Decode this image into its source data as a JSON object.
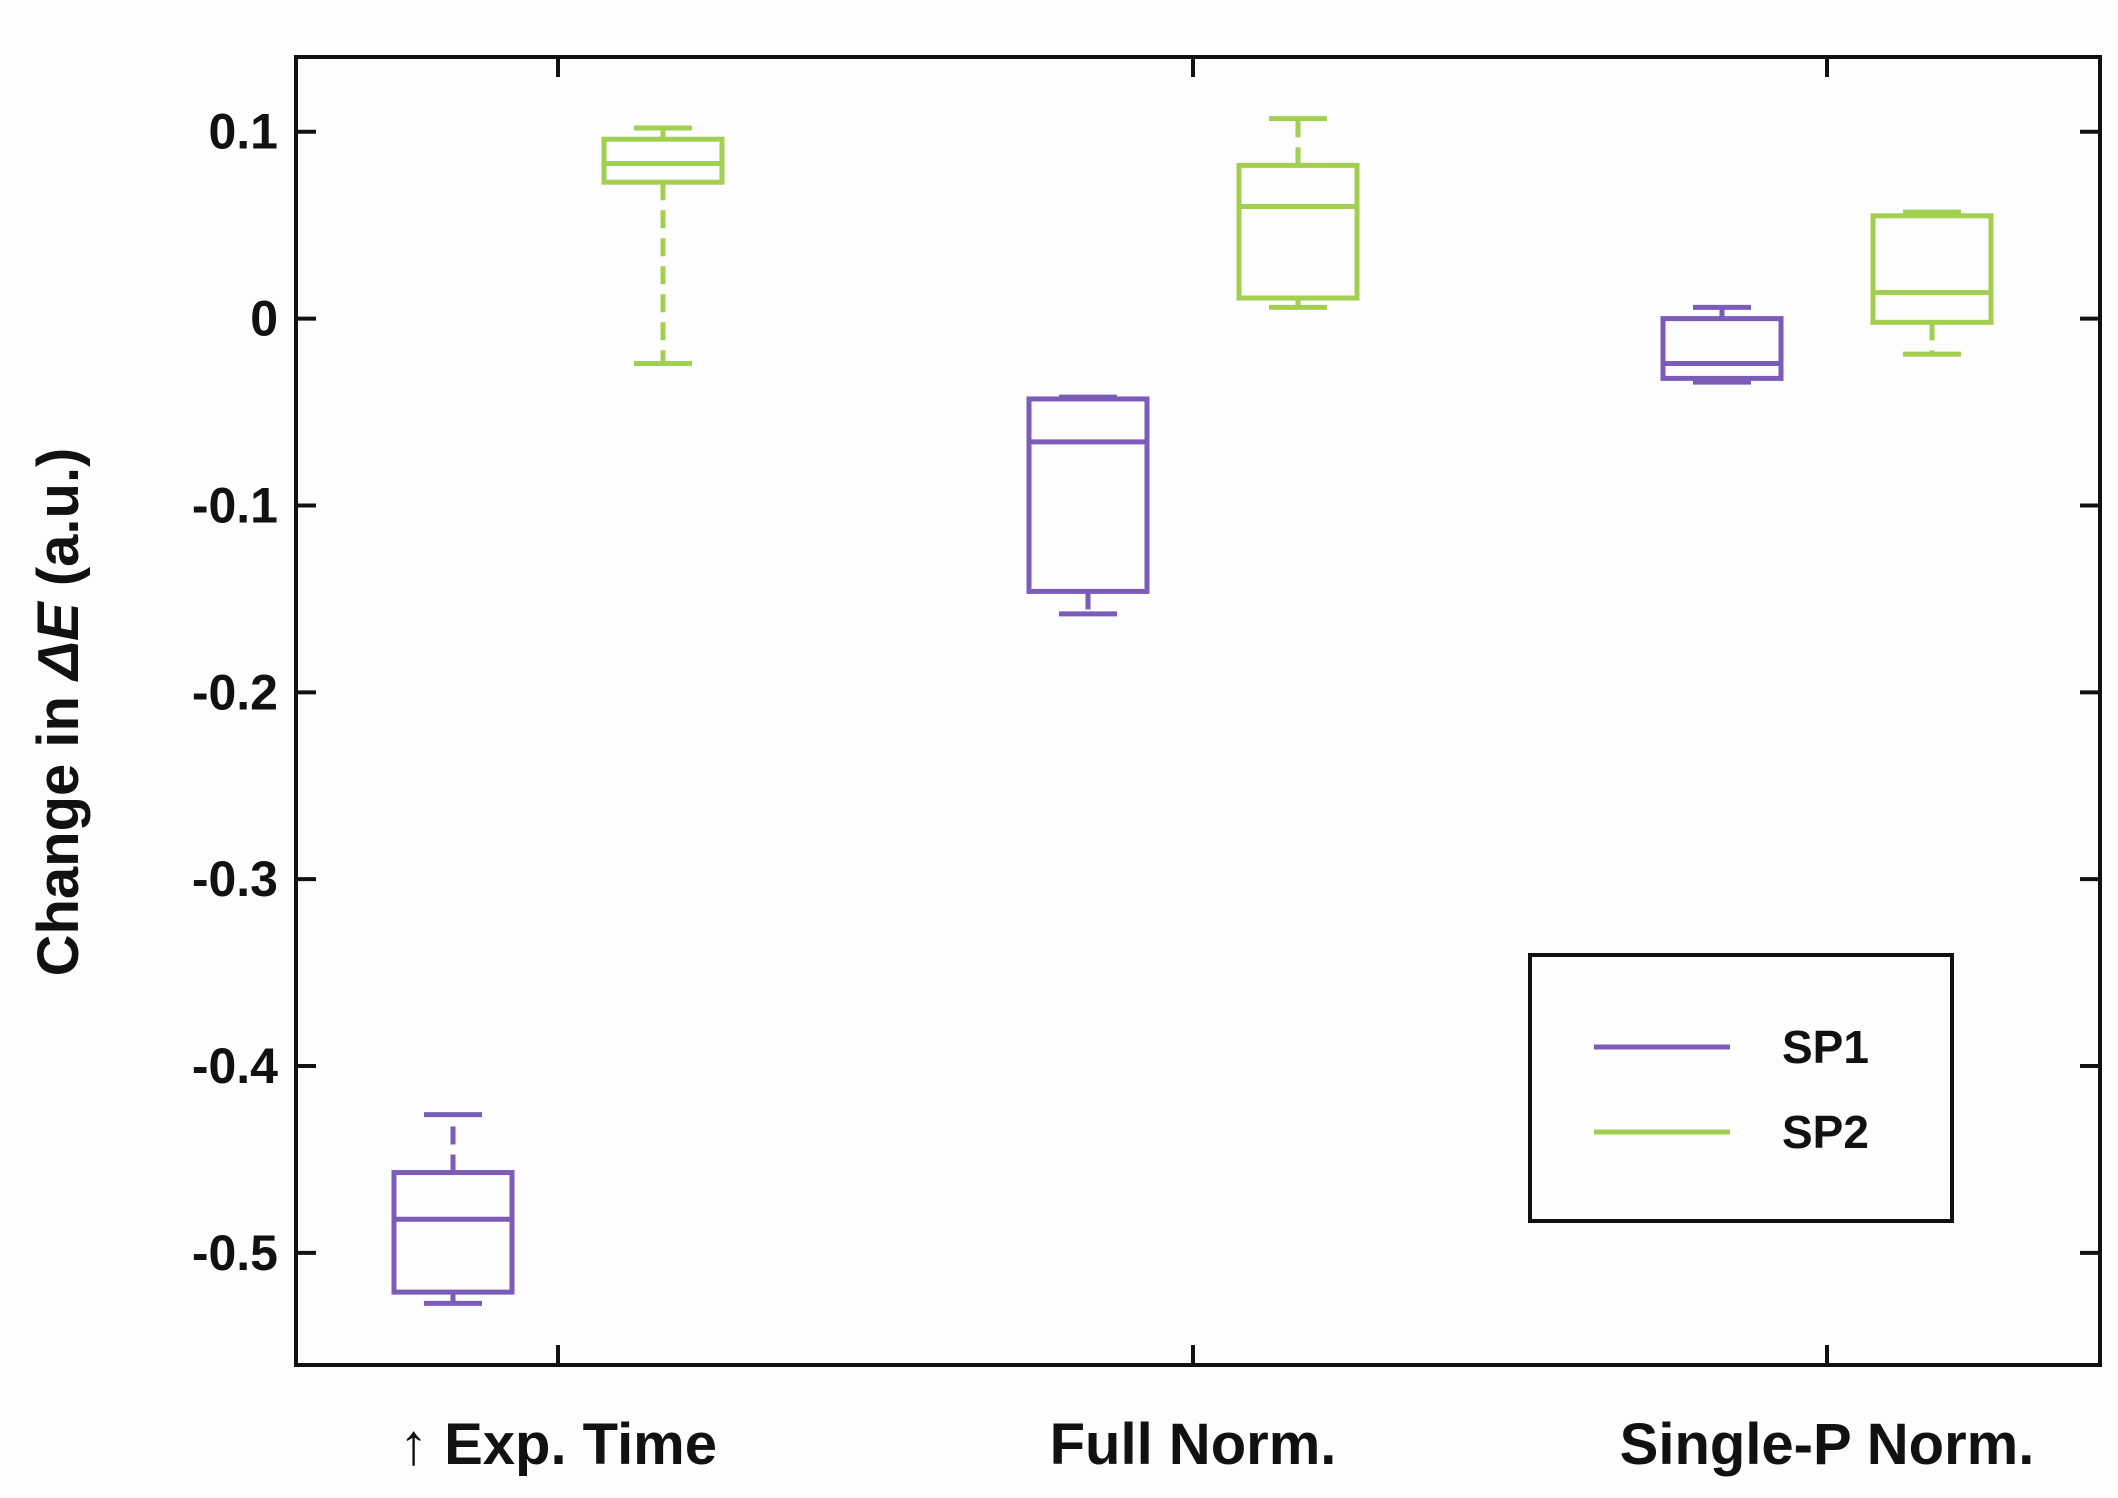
{
  "chart_data": {
    "type": "box",
    "ylabel_parts": [
      "Change in ",
      "ΔE",
      " (a.u.)"
    ],
    "ylim": [
      -0.56,
      0.14
    ],
    "yticks": [
      0.1,
      0,
      -0.1,
      -0.2,
      -0.3,
      -0.4,
      -0.5
    ],
    "ytick_labels": [
      "0.1",
      "0",
      "-0.1",
      "-0.2",
      "-0.3",
      "-0.4",
      "-0.5"
    ],
    "categories": [
      "↑ Exp. Time",
      "Full Norm.",
      "Single-P Norm."
    ],
    "series": [
      {
        "name": "SP1",
        "color": "#7b5cb8",
        "boxes": [
          {
            "category": "↑ Exp. Time",
            "min": -0.527,
            "q1": -0.521,
            "median": -0.482,
            "q3": -0.457,
            "max": -0.426
          },
          {
            "category": "Full Norm.",
            "min": -0.158,
            "q1": -0.146,
            "median": -0.066,
            "q3": -0.043,
            "max": -0.042
          },
          {
            "category": "Single-P Norm.",
            "min": -0.034,
            "q1": -0.032,
            "median": -0.024,
            "q3": 0.0,
            "max": 0.006
          }
        ]
      },
      {
        "name": "SP2",
        "color": "#a2cf50",
        "boxes": [
          {
            "category": "↑ Exp. Time",
            "min": -0.024,
            "q1": 0.073,
            "median": 0.083,
            "q3": 0.096,
            "max": 0.102
          },
          {
            "category": "Full Norm.",
            "min": 0.006,
            "q1": 0.011,
            "median": 0.06,
            "q3": 0.082,
            "max": 0.107
          },
          {
            "category": "Single-P Norm.",
            "min": -0.019,
            "q1": -0.002,
            "median": 0.014,
            "q3": 0.055,
            "max": 0.057
          }
        ]
      }
    ],
    "legend": {
      "position": "bottom-right",
      "entries": [
        "SP1",
        "SP2"
      ]
    }
  }
}
